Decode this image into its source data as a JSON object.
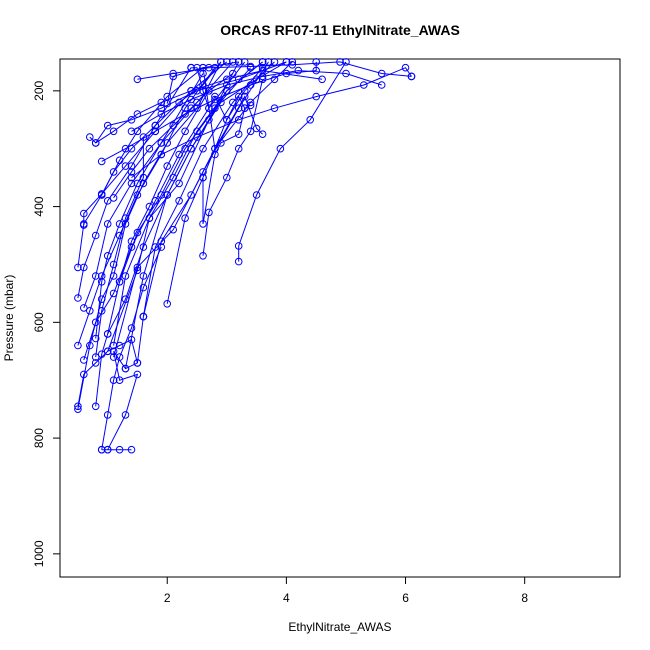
{
  "chart_data": {
    "type": "line",
    "title": "ORCAS RF07-11 EthylNitrate_AWAS",
    "xlabel": "EthylNitrate_AWAS",
    "ylabel": "Pressure (mbar)",
    "xlim": [
      0.2,
      9.6
    ],
    "ylim": [
      1040,
      145
    ],
    "y_reversed": true,
    "x_ticks": [
      2,
      4,
      6,
      8
    ],
    "y_ticks": [
      200,
      400,
      600,
      800,
      1000
    ],
    "grid": false,
    "legend": "none",
    "color": "#0000ff",
    "series": [
      {
        "x": [
          1.4,
          1.2,
          1.0,
          0.9
        ],
        "y": [
          820,
          820,
          820,
          820
        ]
      },
      {
        "x": [
          1.0,
          1.3,
          1.5,
          1.2,
          1.1,
          1.3,
          1.5,
          1.6
        ],
        "y": [
          820,
          760,
          690,
          700,
          650,
          680,
          670,
          590
        ]
      },
      {
        "x": [
          1.6,
          1.9,
          2.4,
          2.8,
          3.4,
          3.8,
          4.1
        ],
        "y": [
          590,
          460,
          380,
          300,
          220,
          180,
          150
        ]
      },
      {
        "x": [
          0.5,
          0.7,
          0.9,
          1.1,
          1.3,
          1.6,
          2.0,
          2.5,
          2.9
        ],
        "y": [
          750,
          640,
          560,
          520,
          430,
          360,
          290,
          230,
          150
        ]
      },
      {
        "x": [
          0.8,
          0.9,
          1.0,
          1.3,
          1.6,
          2.0,
          2.4,
          3.0,
          3.6
        ],
        "y": [
          745,
          655,
          620,
          560,
          470,
          380,
          300,
          200,
          150
        ]
      },
      {
        "x": [
          0.6,
          0.8,
          1.1,
          1.4,
          1.8,
          2.2,
          2.7,
          3.3
        ],
        "y": [
          665,
          600,
          550,
          470,
          390,
          310,
          230,
          150
        ]
      },
      {
        "x": [
          0.5,
          0.7,
          0.9,
          1.2,
          1.5,
          1.9,
          2.3,
          2.8
        ],
        "y": [
          640,
          580,
          520,
          450,
          380,
          310,
          230,
          160
        ]
      },
      {
        "x": [
          0.5,
          0.6,
          0.8,
          1.0,
          1.4,
          1.8,
          2.4
        ],
        "y": [
          558,
          505,
          450,
          390,
          330,
          260,
          160
        ]
      },
      {
        "x": [
          0.5,
          0.6,
          0.9,
          1.2,
          1.5,
          2.0,
          2.6,
          3.2
        ],
        "y": [
          505,
          430,
          380,
          320,
          270,
          210,
          160,
          150
        ]
      },
      {
        "x": [
          0.6,
          0.6,
          0.9,
          1.3,
          1.8,
          2.4,
          3.0
        ],
        "y": [
          432,
          412,
          378,
          330,
          270,
          200,
          150
        ]
      },
      {
        "x": [
          0.6,
          0.8,
          1.0,
          1.4,
          1.9,
          2.5,
          3.1
        ],
        "y": [
          575,
          520,
          430,
          360,
          290,
          220,
          150
        ]
      },
      {
        "x": [
          0.8,
          0.9,
          1.0,
          1.2,
          1.5,
          1.9,
          2.6
        ],
        "y": [
          628,
          530,
          485,
          430,
          360,
          290,
          170
        ]
      },
      {
        "x": [
          1.0,
          1.2,
          1.5,
          1.9,
          2.3,
          2.8,
          3.4
        ],
        "y": [
          620,
          530,
          445,
          380,
          300,
          230,
          160
        ]
      },
      {
        "x": [
          1.1,
          1.3,
          1.7,
          2.1,
          2.5,
          3.0,
          3.6
        ],
        "y": [
          640,
          520,
          420,
          350,
          270,
          200,
          150
        ]
      },
      {
        "x": [
          1.3,
          1.6,
          2.0,
          2.4,
          2.9,
          3.5,
          4.0
        ],
        "y": [
          680,
          520,
          380,
          300,
          220,
          180,
          150
        ]
      },
      {
        "x": [
          1.6,
          1.8,
          2.2,
          2.6,
          3.1,
          3.6
        ],
        "y": [
          590,
          470,
          390,
          300,
          220,
          160
        ]
      },
      {
        "x": [
          2.0,
          2.3,
          2.6,
          3.0,
          3.3,
          3.8
        ],
        "y": [
          568,
          420,
          350,
          250,
          200,
          150
        ]
      },
      {
        "x": [
          1.1,
          1.5,
          2.1,
          2.6,
          3.2,
          3.7
        ],
        "y": [
          660,
          505,
          440,
          340,
          230,
          150
        ]
      },
      {
        "x": [
          1.0,
          1.5,
          1.7,
          2.2,
          2.7,
          3.2
        ],
        "y": [
          650,
          510,
          420,
          360,
          250,
          150
        ]
      },
      {
        "x": [
          0.7,
          0.8,
          1.0,
          1.4,
          1.9,
          2.5,
          3.2,
          4.0
        ],
        "y": [
          280,
          290,
          260,
          250,
          230,
          200,
          180,
          150
        ]
      },
      {
        "x": [
          0.8,
          1.1,
          1.5,
          1.9,
          2.4,
          3.0,
          3.6,
          4.6
        ],
        "y": [
          290,
          270,
          240,
          220,
          200,
          180,
          165,
          180
        ]
      },
      {
        "x": [
          0.9,
          1.3,
          1.8,
          2.3,
          2.8,
          3.4,
          4.0,
          4.5,
          4.5
        ],
        "y": [
          322,
          300,
          270,
          240,
          215,
          190,
          170,
          165,
          150
        ]
      },
      {
        "x": [
          1.4,
          1.9,
          2.4,
          3.0,
          3.6,
          4.2,
          5.0,
          5.6
        ],
        "y": [
          270,
          240,
          215,
          190,
          175,
          165,
          170,
          190
        ]
      },
      {
        "x": [
          1.5,
          2.1,
          2.7,
          3.4,
          4.1,
          4.9,
          5.6,
          6.1
        ],
        "y": [
          180,
          170,
          160,
          158,
          155,
          150,
          170,
          175
        ]
      },
      {
        "x": [
          1.4,
          1.9,
          2.5,
          3.2,
          3.8,
          4.5,
          5.3,
          6.0,
          6.1
        ],
        "y": [
          350,
          310,
          280,
          250,
          230,
          210,
          190,
          160,
          175
        ]
      },
      {
        "x": [
          2.0,
          2.1,
          2.6,
          2.8,
          3.3,
          3.5,
          3.6
        ],
        "y": [
          222,
          175,
          160,
          300,
          210,
          265,
          275
        ]
      },
      {
        "x": [
          2.4,
          2.4,
          2.5,
          2.6,
          2.7,
          2.8,
          3.0,
          3.2,
          3.3
        ],
        "y": [
          160,
          160,
          160,
          200,
          230,
          210,
          250,
          210,
          230
        ]
      },
      {
        "x": [
          2.6,
          2.6,
          2.8,
          2.9,
          3.2,
          3.3,
          3.4
        ],
        "y": [
          350,
          430,
          310,
          290,
          275,
          230,
          225
        ]
      },
      {
        "x": [
          2.6,
          2.7,
          3.0,
          3.2,
          3.4,
          3.6
        ],
        "y": [
          485,
          410,
          350,
          300,
          270,
          180
        ]
      },
      {
        "x": [
          3.2,
          3.2,
          3.5,
          3.9,
          4.4,
          5.0
        ],
        "y": [
          495,
          468,
          380,
          300,
          250,
          150
        ]
      },
      {
        "x": [
          0.9,
          1.0,
          1.1,
          1.2,
          1.4,
          1.6,
          1.9
        ],
        "y": [
          820,
          760,
          700,
          660,
          610,
          540,
          470
        ]
      },
      {
        "x": [
          0.5,
          0.6,
          0.8,
          1.0,
          1.2,
          1.4,
          1.5
        ],
        "y": [
          745,
          690,
          670,
          650,
          640,
          630,
          670
        ]
      },
      {
        "x": [
          0.8,
          0.9,
          1.1,
          1.3,
          1.6,
          1.6
        ],
        "y": [
          660,
          580,
          500,
          420,
          350,
          280
        ]
      },
      {
        "x": [
          1.2,
          1.4,
          1.7,
          2.0,
          2.3,
          2.7
        ],
        "y": [
          530,
          460,
          400,
          330,
          270,
          200
        ]
      },
      {
        "x": [
          0.9,
          1.1,
          1.4,
          1.8,
          2.2,
          2.6,
          2.9
        ],
        "y": [
          380,
          340,
          300,
          260,
          220,
          190,
          150
        ]
      },
      {
        "x": [
          1.1,
          1.4,
          1.7,
          2.1,
          2.4,
          2.7,
          3.1
        ],
        "y": [
          385,
          340,
          300,
          260,
          230,
          200,
          170
        ]
      }
    ]
  }
}
